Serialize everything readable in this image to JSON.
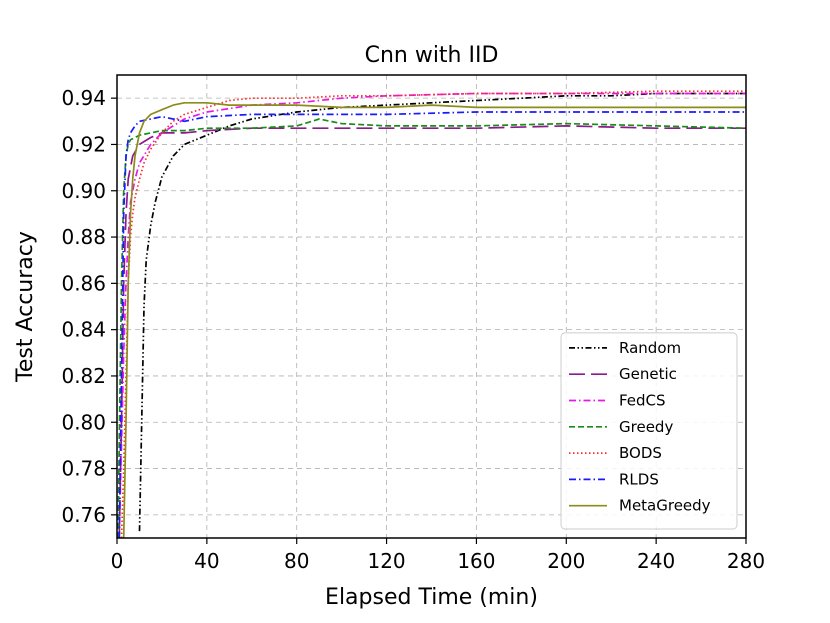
{
  "chart_data": {
    "type": "line",
    "title": "Cnn with IID",
    "xlabel": "Elapsed Time (min)",
    "ylabel": "Test Accuracy",
    "xlim": [
      0,
      280
    ],
    "ylim": [
      0.75,
      0.95
    ],
    "xticks": [
      0,
      40,
      80,
      120,
      160,
      200,
      240,
      280
    ],
    "yticks": [
      0.76,
      0.78,
      0.8,
      0.82,
      0.84,
      0.86,
      0.88,
      0.9,
      0.92,
      0.94
    ],
    "ytick_labels": [
      "0.76",
      "0.78",
      "0.80",
      "0.82",
      "0.84",
      "0.86",
      "0.88",
      "0.90",
      "0.92",
      "0.94"
    ],
    "grid": true,
    "legend_position": "lower-right",
    "series": [
      {
        "name": "Random",
        "color": "#000000",
        "dash": "dashdotdot",
        "x": [
          10,
          11,
          12,
          13,
          15,
          17,
          20,
          25,
          30,
          40,
          50,
          60,
          80,
          100,
          120,
          140,
          160,
          180,
          200,
          220,
          240,
          260,
          280
        ],
        "y": [
          0.753,
          0.8,
          0.85,
          0.87,
          0.885,
          0.895,
          0.906,
          0.915,
          0.92,
          0.924,
          0.928,
          0.931,
          0.934,
          0.936,
          0.937,
          0.938,
          0.939,
          0.94,
          0.941,
          0.941,
          0.942,
          0.942,
          0.942
        ]
      },
      {
        "name": "Genetic",
        "color": "#8b1a8b",
        "dash": "longdash",
        "x": [
          1,
          2,
          3,
          4,
          5,
          7,
          10,
          15,
          20,
          30,
          40,
          60,
          80,
          100,
          120,
          160,
          200,
          240,
          280
        ],
        "y": [
          0.75,
          0.8,
          0.86,
          0.89,
          0.905,
          0.915,
          0.92,
          0.923,
          0.925,
          0.925,
          0.926,
          0.927,
          0.927,
          0.927,
          0.927,
          0.927,
          0.928,
          0.927,
          0.927
        ]
      },
      {
        "name": "FedCS",
        "color": "#e619e6",
        "dash": "dashdot",
        "x": [
          1,
          2,
          3,
          4,
          5,
          6,
          8,
          10,
          15,
          20,
          25,
          30,
          40,
          60,
          80,
          100,
          120,
          160,
          200,
          240,
          280
        ],
        "y": [
          0.75,
          0.79,
          0.83,
          0.86,
          0.88,
          0.895,
          0.905,
          0.912,
          0.92,
          0.925,
          0.928,
          0.931,
          0.934,
          0.937,
          0.938,
          0.94,
          0.941,
          0.942,
          0.942,
          0.942,
          0.942
        ]
      },
      {
        "name": "Greedy",
        "color": "#1a8c1a",
        "dash": "dashed",
        "x": [
          0.5,
          1,
          2,
          3,
          4,
          5,
          6,
          8,
          10,
          15,
          20,
          30,
          40,
          60,
          80,
          90,
          100,
          120,
          160,
          200,
          240,
          280
        ],
        "y": [
          0.75,
          0.79,
          0.86,
          0.9,
          0.915,
          0.92,
          0.922,
          0.923,
          0.924,
          0.925,
          0.926,
          0.926,
          0.927,
          0.927,
          0.928,
          0.931,
          0.929,
          0.928,
          0.928,
          0.929,
          0.928,
          0.927
        ]
      },
      {
        "name": "BODS",
        "color": "#ff2a2a",
        "dash": "dotted",
        "x": [
          2,
          3,
          4,
          5,
          6,
          7,
          8,
          10,
          12,
          15,
          20,
          25,
          30,
          40,
          50,
          60,
          80,
          100,
          120,
          160,
          200,
          240,
          280
        ],
        "y": [
          0.75,
          0.78,
          0.82,
          0.86,
          0.88,
          0.89,
          0.897,
          0.905,
          0.912,
          0.918,
          0.925,
          0.93,
          0.933,
          0.936,
          0.939,
          0.94,
          0.94,
          0.941,
          0.941,
          0.942,
          0.942,
          0.943,
          0.943
        ]
      },
      {
        "name": "RLDS",
        "color": "#1a1aff",
        "dash": "dashdot",
        "x": [
          1,
          2,
          3,
          4,
          5,
          6,
          8,
          10,
          15,
          20,
          25,
          30,
          40,
          60,
          80,
          100,
          120,
          160,
          200,
          240,
          280
        ],
        "y": [
          0.75,
          0.82,
          0.89,
          0.915,
          0.922,
          0.925,
          0.928,
          0.93,
          0.931,
          0.932,
          0.931,
          0.93,
          0.932,
          0.933,
          0.933,
          0.933,
          0.933,
          0.934,
          0.934,
          0.934,
          0.934
        ]
      },
      {
        "name": "MetaGreedy",
        "color": "#8c8c1a",
        "dash": "solid",
        "x": [
          3,
          4,
          5,
          6,
          7,
          8,
          10,
          12,
          15,
          20,
          25,
          30,
          40,
          50,
          60,
          80,
          100,
          120,
          140,
          160,
          200,
          240,
          280
        ],
        "y": [
          0.75,
          0.8,
          0.86,
          0.89,
          0.905,
          0.915,
          0.925,
          0.93,
          0.933,
          0.935,
          0.937,
          0.938,
          0.938,
          0.937,
          0.937,
          0.937,
          0.936,
          0.936,
          0.937,
          0.936,
          0.936,
          0.936,
          0.936
        ]
      }
    ]
  }
}
